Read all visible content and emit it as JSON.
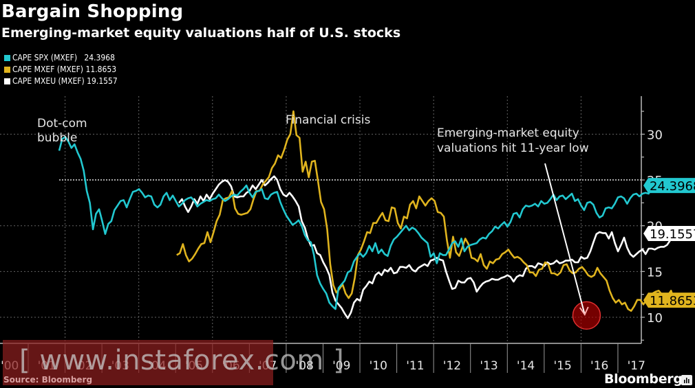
{
  "chart_data": {
    "type": "line",
    "title": "Bargain Shopping",
    "subtitle": "Emerging-market equity valuations half of U.S. stocks",
    "source": "Source: Bloomberg",
    "brand": "Bloomberg",
    "xlabel": "",
    "ylabel": "",
    "x_tick_labels": [
      "'00",
      "'01",
      "'02",
      "'03",
      "'04",
      "'05",
      "'06",
      "'07",
      "'08",
      "'09",
      "'10",
      "'11",
      "'12",
      "'13",
      "'14",
      "'15",
      "'16",
      "'17"
    ],
    "x_tick_years": [
      2000,
      2001,
      2002,
      2003,
      2004,
      2005,
      2006,
      2007,
      2008,
      2009,
      2010,
      2011,
      2012,
      2013,
      2014,
      2015,
      2016,
      2017
    ],
    "xlim": [
      2000.0,
      2017.63
    ],
    "y_ticks": [
      10,
      15,
      20,
      25,
      30
    ],
    "y_tick_labels": [
      "10",
      "15",
      "20",
      "25",
      "30"
    ],
    "ylim": [
      7,
      33.5
    ],
    "grid": true,
    "reference_line": {
      "value": 25,
      "style": "dotted"
    },
    "legend_position": "top-left",
    "series": [
      {
        "name": "CAPE SPX (MXEF)",
        "last_value": "24.3968",
        "color": "#22c8d0",
        "start": 2001.84,
        "step": 0.0833,
        "values": [
          28.2,
          29.5,
          29.7,
          29.2,
          28.5,
          28.9,
          28.0,
          27.3,
          26.0,
          23.8,
          22.5,
          19.6,
          21.3,
          21.8,
          20.5,
          19.1,
          20.2,
          20.5,
          21.7,
          22.2,
          22.7,
          22.8,
          22.0,
          22.9,
          23.7,
          23.8,
          24.0,
          23.6,
          23.1,
          23.3,
          23.2,
          22.3,
          22.0,
          22.3,
          23.2,
          23.6,
          22.8,
          23.3,
          22.7,
          22.1,
          22.4,
          22.8,
          23.0,
          23.1,
          22.7,
          22.1,
          22.4,
          22.6,
          22.8,
          22.7,
          22.9,
          23.0,
          23.4,
          23.0,
          22.7,
          22.9,
          23.2,
          23.4,
          23.3,
          23.7,
          24.0,
          24.4,
          23.6,
          23.1,
          23.7,
          23.8,
          24.0,
          23.0,
          22.9,
          23.4,
          23.6,
          23.7,
          22.6,
          21.8,
          21.1,
          20.6,
          20.1,
          20.3,
          20.6,
          20.0,
          19.0,
          18.4,
          18.2,
          16.8,
          14.6,
          13.7,
          13.1,
          12.6,
          11.6,
          11.2,
          10.9,
          13.2,
          13.6,
          14.0,
          14.9,
          15.1,
          16.1,
          16.6,
          17.0,
          16.6,
          17.0,
          17.8,
          17.2,
          18.1,
          17.0,
          17.4,
          16.9,
          16.7,
          17.8,
          18.5,
          18.8,
          19.2,
          19.6,
          20.0,
          19.5,
          19.8,
          19.6,
          19.2,
          18.7,
          18.4,
          18.1,
          16.6,
          17.0,
          15.9,
          17.0,
          16.8,
          16.8,
          17.4,
          18.1,
          18.3,
          17.7,
          18.6,
          17.2,
          17.7,
          17.9,
          18.0,
          18.1,
          18.5,
          18.7,
          18.6,
          19.1,
          19.4,
          19.9,
          19.7,
          20.1,
          20.4,
          19.9,
          20.4,
          21.3,
          21.4,
          20.9,
          21.8,
          22.2,
          22.1,
          22.2,
          22.4,
          22.1,
          22.7,
          22.4,
          22.5,
          22.9,
          23.4,
          22.8,
          23.2,
          23.3,
          22.9,
          23.2,
          23.5,
          22.7,
          22.9,
          22.2,
          21.7,
          22.5,
          22.6,
          22.3,
          21.4,
          20.9,
          21.1,
          21.9,
          22.0,
          21.9,
          22.4,
          23.1,
          23.2,
          23.0,
          22.4,
          23.0,
          23.4,
          23.5,
          23.2,
          23.5,
          23.6,
          23.5,
          24.1,
          24.4
        ]
      },
      {
        "name": "CAPE MXEF (MXEF)",
        "last_value": "11.8653",
        "color": "#e0b41e",
        "start": 2005.03,
        "step": 0.0833,
        "values": [
          16.8,
          17.0,
          18.0,
          16.8,
          16.1,
          16.4,
          16.9,
          17.5,
          18.0,
          18.1,
          19.3,
          18.2,
          19.3,
          20.5,
          21.2,
          22.8,
          23.0,
          23.1,
          23.8,
          21.9,
          21.3,
          21.2,
          21.3,
          21.4,
          21.8,
          22.9,
          23.8,
          23.8,
          24.5,
          24.9,
          25.3,
          26.3,
          26.8,
          27.7,
          27.4,
          28.3,
          29.4,
          30.0,
          32.5,
          29.9,
          29.6,
          25.9,
          27.0,
          25.3,
          27.0,
          27.1,
          24.9,
          22.6,
          21.8,
          19.6,
          15.8,
          13.5,
          12.7,
          13.1,
          13.6,
          12.6,
          12.1,
          12.6,
          14.3,
          16.8,
          17.4,
          18.3,
          19.3,
          19.2,
          20.3,
          20.3,
          20.9,
          21.4,
          20.6,
          20.5,
          22.0,
          21.9,
          20.3,
          19.7,
          21.0,
          20.8,
          22.3,
          22.7,
          21.9,
          23.2,
          22.7,
          22.2,
          22.7,
          23.0,
          22.7,
          21.5,
          21.4,
          21.0,
          18.4,
          16.5,
          18.8,
          17.1,
          16.7,
          17.6,
          18.6,
          18.0,
          16.5,
          16.4,
          16.1,
          16.9,
          15.7,
          15.3,
          16.1,
          15.9,
          16.3,
          16.4,
          16.9,
          17.1,
          17.4,
          16.9,
          16.5,
          16.6,
          16.4,
          16.0,
          15.7,
          14.9,
          14.9,
          14.5,
          15.2,
          15.3,
          16.0,
          15.8,
          14.8,
          14.8,
          14.6,
          14.9,
          15.7,
          15.8,
          15.1,
          14.8,
          14.9,
          15.3,
          15.5,
          15.1,
          14.6,
          14.4,
          14.6,
          15.4,
          14.8,
          14.4,
          14.0,
          12.9,
          12.1,
          11.6,
          11.9,
          11.4,
          11.6,
          10.9,
          10.7,
          11.2,
          11.9,
          11.9,
          11.4,
          11.9,
          12.3,
          12.6,
          12.8,
          12.9,
          12.5,
          12.2,
          12.4,
          12.9,
          11.9
        ]
      },
      {
        "name": "CAPE MXEU (MXEF)",
        "last_value": "19.1557",
        "color": "#ffffff",
        "start": 2005.09,
        "step": 0.0833,
        "values": [
          22.5,
          22.9,
          22.1,
          21.5,
          22.1,
          22.9,
          22.4,
          23.2,
          22.7,
          23.4,
          22.9,
          23.5,
          24.0,
          24.5,
          24.8,
          25.0,
          24.8,
          24.3,
          23.2,
          23.1,
          23.2,
          23.2,
          23.6,
          23.8,
          24.4,
          24.0,
          24.5,
          25.0,
          24.4,
          24.7,
          25.1,
          25.4,
          25.0,
          24.0,
          23.4,
          23.2,
          23.6,
          23.2,
          22.7,
          22.1,
          20.5,
          19.8,
          18.6,
          17.8,
          17.9,
          17.0,
          16.8,
          16.0,
          15.4,
          14.6,
          12.7,
          11.8,
          11.4,
          11.0,
          10.4,
          9.9,
          10.5,
          11.6,
          12.0,
          11.8,
          13.0,
          13.4,
          13.9,
          13.7,
          14.6,
          14.9,
          14.6,
          15.2,
          15.0,
          15.4,
          14.8,
          14.9,
          15.5,
          15.5,
          15.4,
          15.7,
          15.2,
          15.0,
          15.4,
          15.6,
          15.8,
          15.6,
          16.2,
          16.3,
          16.5,
          16.3,
          16.2,
          15.0,
          14.0,
          13.1,
          13.2,
          14.0,
          13.8,
          13.8,
          14.2,
          14.3,
          13.8,
          12.8,
          13.3,
          13.7,
          13.9,
          14.0,
          14.2,
          14.1,
          14.1,
          14.3,
          14.4,
          14.6,
          14.4,
          13.9,
          14.4,
          14.6,
          14.5,
          15.3,
          15.6,
          15.6,
          15.4,
          15.9,
          15.8,
          15.6,
          16.0,
          15.8,
          15.9,
          16.2,
          15.9,
          16.0,
          16.2,
          16.2,
          16.3,
          16.0,
          16.0,
          16.6,
          16.4,
          16.5,
          17.2,
          18.2,
          19.1,
          19.3,
          19.2,
          19.2,
          18.6,
          19.3,
          18.1,
          17.2,
          17.9,
          18.7,
          17.6,
          16.9,
          16.6,
          16.9,
          17.2,
          17.4,
          16.9,
          17.5,
          17.5,
          17.4,
          17.6,
          17.7,
          17.7,
          17.9,
          18.4,
          18.5,
          18.8,
          19.2
        ]
      }
    ],
    "annotations": [
      {
        "text_lines": [
          "Dot-com",
          "bubble"
        ],
        "year": 2001.3,
        "value": 31.5
      },
      {
        "text_lines": [
          "Financial crisis"
        ],
        "year": 2007.3,
        "value": 31.5
      },
      {
        "text_lines": [
          "Emerging-market equity",
          "valuations hit 11-year low"
        ],
        "year": 2012.9,
        "value": 30.3,
        "arrow_to": {
          "year": 2016.1,
          "value": 10.3
        },
        "highlight_circle": {
          "year": 2016.15,
          "value": 10.2
        }
      }
    ],
    "watermark": "[ www.instaforex.com ]"
  }
}
